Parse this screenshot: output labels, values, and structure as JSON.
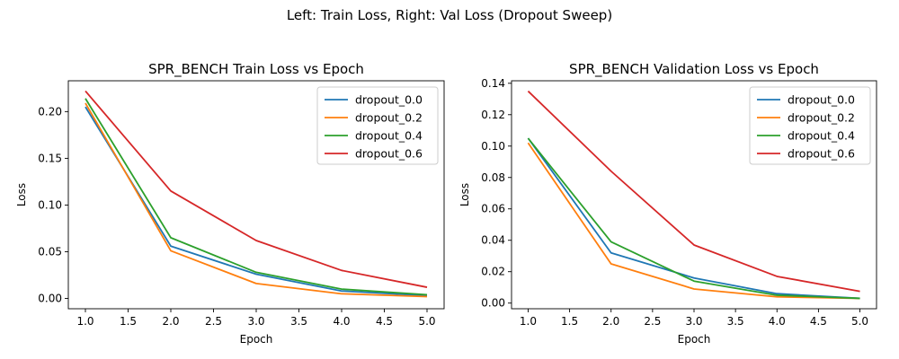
{
  "suptitle": "Left: Train Loss, Right: Val Loss (Dropout Sweep)",
  "chart_data": [
    {
      "type": "line",
      "title": "SPR_BENCH Train Loss vs Epoch",
      "xlabel": "Epoch",
      "ylabel": "Loss",
      "x": [
        1,
        2,
        3,
        4,
        5
      ],
      "xlim": [
        0.8,
        5.2
      ],
      "ylim": [
        -0.011,
        0.233
      ],
      "xticks": [
        1.0,
        1.5,
        2.0,
        2.5,
        3.0,
        3.5,
        4.0,
        4.5,
        5.0
      ],
      "xtick_labels": [
        "1.0",
        "1.5",
        "2.0",
        "2.5",
        "3.0",
        "3.5",
        "4.0",
        "4.5",
        "5.0"
      ],
      "yticks": [
        0.0,
        0.05,
        0.1,
        0.15,
        0.2
      ],
      "ytick_labels": [
        "0.00",
        "0.05",
        "0.10",
        "0.15",
        "0.20"
      ],
      "legend_position": "top-right",
      "grid": false,
      "series": [
        {
          "name": "dropout_0.0",
          "color": "#1f77b4",
          "values": [
            0.205,
            0.056,
            0.026,
            0.008,
            0.003
          ]
        },
        {
          "name": "dropout_0.2",
          "color": "#ff7f0e",
          "values": [
            0.209,
            0.051,
            0.016,
            0.005,
            0.002
          ]
        },
        {
          "name": "dropout_0.4",
          "color": "#2ca02c",
          "values": [
            0.214,
            0.065,
            0.028,
            0.01,
            0.004
          ]
        },
        {
          "name": "dropout_0.6",
          "color": "#d62728",
          "values": [
            0.222,
            0.115,
            0.062,
            0.03,
            0.012
          ]
        }
      ]
    },
    {
      "type": "line",
      "title": "SPR_BENCH Validation Loss vs Epoch",
      "xlabel": "Epoch",
      "ylabel": "Loss",
      "x": [
        1,
        2,
        3,
        4,
        5
      ],
      "xlim": [
        0.8,
        5.2
      ],
      "ylim": [
        -0.0036,
        0.1416
      ],
      "xticks": [
        1.0,
        1.5,
        2.0,
        2.5,
        3.0,
        3.5,
        4.0,
        4.5,
        5.0
      ],
      "xtick_labels": [
        "1.0",
        "1.5",
        "2.0",
        "2.5",
        "3.0",
        "3.5",
        "4.0",
        "4.5",
        "5.0"
      ],
      "yticks": [
        0.0,
        0.02,
        0.04,
        0.06,
        0.08,
        0.1,
        0.12,
        0.14
      ],
      "ytick_labels": [
        "0.00",
        "0.02",
        "0.04",
        "0.06",
        "0.08",
        "0.10",
        "0.12",
        "0.14"
      ],
      "legend_position": "top-right",
      "grid": false,
      "series": [
        {
          "name": "dropout_0.0",
          "color": "#1f77b4",
          "values": [
            0.105,
            0.032,
            0.016,
            0.006,
            0.003
          ]
        },
        {
          "name": "dropout_0.2",
          "color": "#ff7f0e",
          "values": [
            0.102,
            0.025,
            0.009,
            0.004,
            0.003
          ]
        },
        {
          "name": "dropout_0.4",
          "color": "#2ca02c",
          "values": [
            0.105,
            0.039,
            0.014,
            0.005,
            0.003
          ]
        },
        {
          "name": "dropout_0.6",
          "color": "#d62728",
          "values": [
            0.135,
            0.084,
            0.037,
            0.017,
            0.0075
          ]
        }
      ]
    }
  ]
}
